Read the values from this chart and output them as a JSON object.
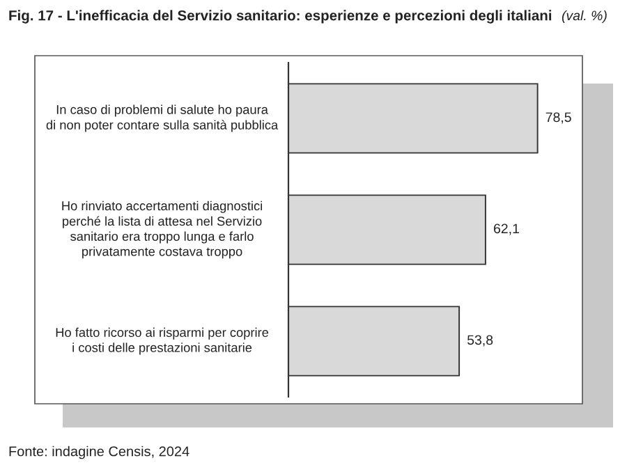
{
  "chart_data": {
    "type": "bar",
    "orientation": "horizontal",
    "title": "Fig. 17 - L'inefficacia del Servizio sanitario: esperienze e percezioni degli italiani",
    "subtitle": "(val. %)",
    "categories": [
      "In caso di problemi di salute ho paura\ndi non poter contare sulla sanità pubblica",
      "Ho rinviato accertamenti diagnostici\nperché la lista di attesa nel Servizio\nsanitario era troppo lunga e farlo\nprivatamente costava troppo",
      "Ho fatto ricorso ai risparmi per coprire\ni costi delle prestazioni sanitarie"
    ],
    "values": [
      78.5,
      62.1,
      53.8
    ],
    "value_labels": [
      "78,5",
      "62,1",
      "53,8"
    ],
    "color": "#d9d9d9",
    "grid": false,
    "legend": false,
    "annotations": [
      "Fonte: indagine Censis, 2024"
    ]
  }
}
